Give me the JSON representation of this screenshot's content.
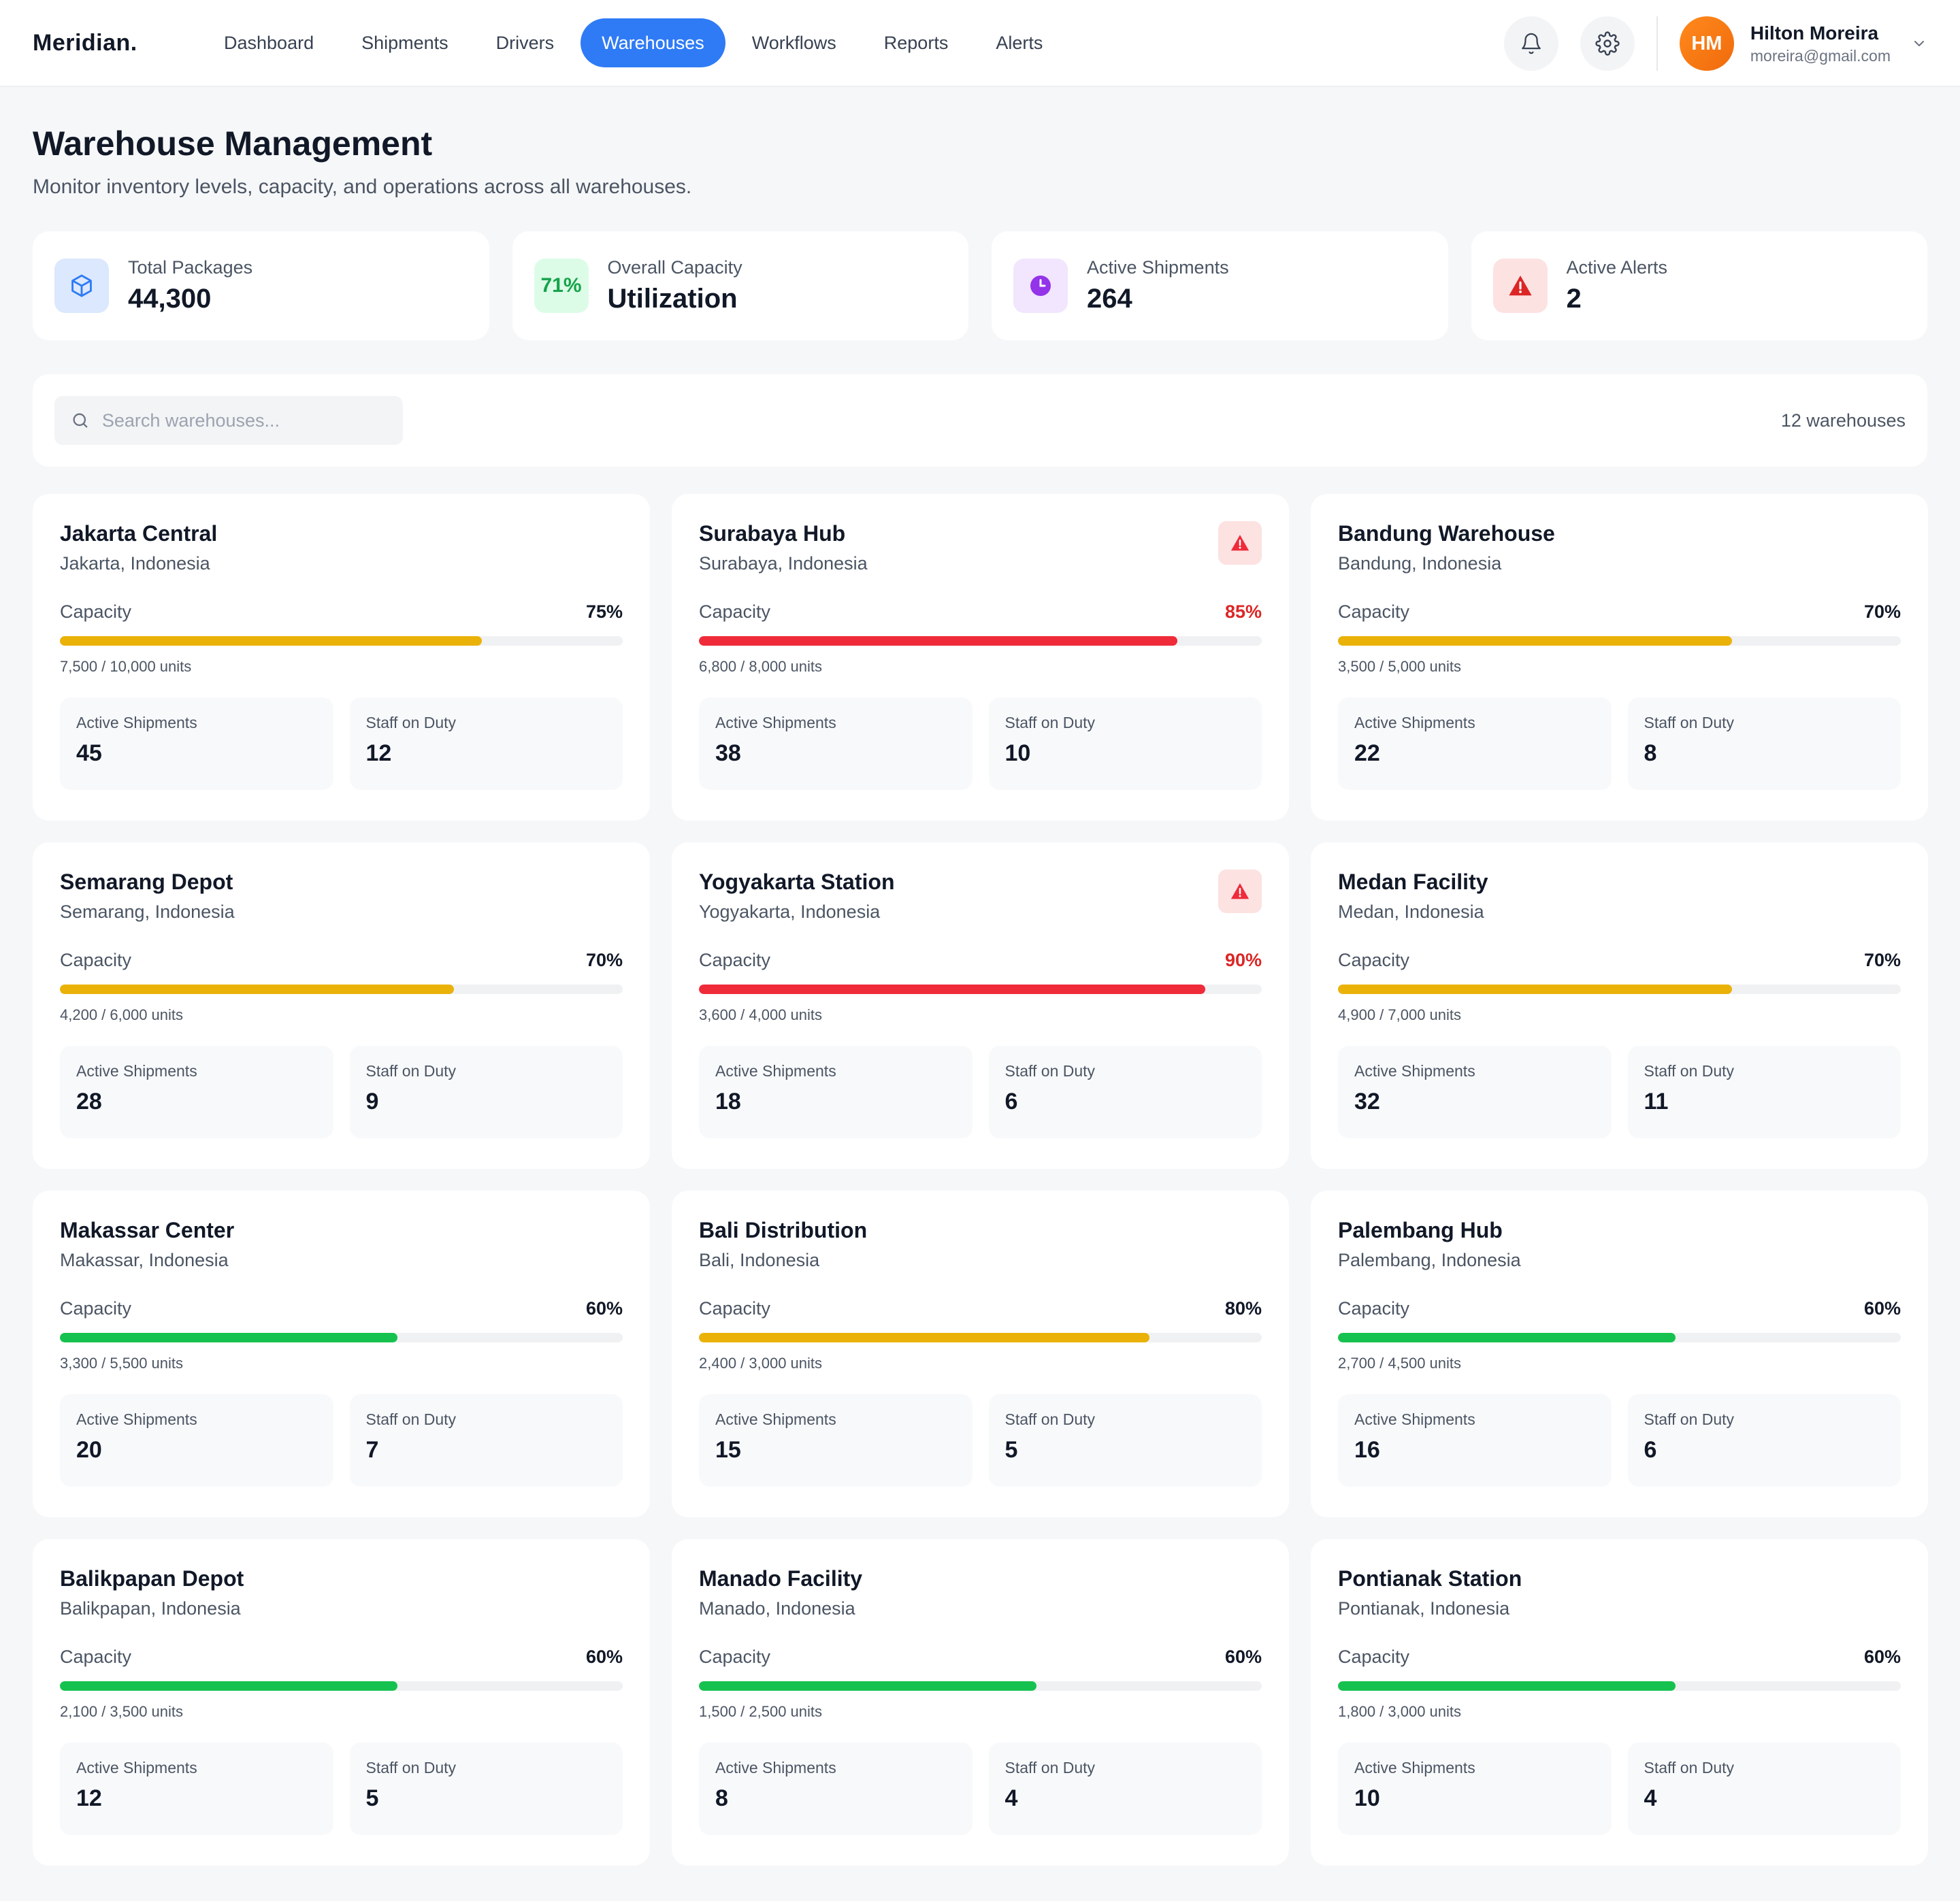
{
  "brand": "Meridian.",
  "nav": [
    {
      "label": "Dashboard",
      "active": false
    },
    {
      "label": "Shipments",
      "active": false
    },
    {
      "label": "Drivers",
      "active": false
    },
    {
      "label": "Warehouses",
      "active": true
    },
    {
      "label": "Workflows",
      "active": false
    },
    {
      "label": "Reports",
      "active": false
    },
    {
      "label": "Alerts",
      "active": false
    }
  ],
  "user": {
    "initials": "HM",
    "name": "Hilton Moreira",
    "email": "moreira@gmail.com"
  },
  "header": {
    "title": "Warehouse Management",
    "subtitle": "Monitor inventory levels, capacity, and operations across all warehouses."
  },
  "stats": {
    "total_packages": {
      "label": "Total Packages",
      "value": "44,300",
      "icon": "cube-icon"
    },
    "overall_capacity": {
      "label": "Overall Capacity",
      "value": "Utilization",
      "badge": "71%"
    },
    "active_shipments": {
      "label": "Active Shipments",
      "value": "264",
      "icon": "clock-icon"
    },
    "active_alerts": {
      "label": "Active Alerts",
      "value": "2",
      "icon": "warning-icon"
    }
  },
  "search": {
    "placeholder": "Search warehouses...",
    "value": ""
  },
  "warehouse_count": "12 warehouses",
  "labels": {
    "capacity": "Capacity",
    "active_shipments": "Active Shipments",
    "staff_on_duty": "Staff on Duty"
  },
  "colors": {
    "accent": "#2f7bf5",
    "capacity_high": "#ef2b3a",
    "capacity_mid": "#eab208",
    "capacity_low": "#16c24f",
    "alert_text": "#dc2626"
  },
  "warehouses": [
    {
      "name": "Jakarta Central",
      "location": "Jakarta, Indonesia",
      "capacity_pct": "75%",
      "capacity_fraction": 0.75,
      "level": "mid",
      "units": "7,500 / 10,000 units",
      "active_shipments": "45",
      "staff": "12",
      "alert": false
    },
    {
      "name": "Surabaya Hub",
      "location": "Surabaya, Indonesia",
      "capacity_pct": "85%",
      "capacity_fraction": 0.85,
      "level": "high",
      "units": "6,800 / 8,000 units",
      "active_shipments": "38",
      "staff": "10",
      "alert": true
    },
    {
      "name": "Bandung Warehouse",
      "location": "Bandung, Indonesia",
      "capacity_pct": "70%",
      "capacity_fraction": 0.7,
      "level": "mid",
      "units": "3,500 / 5,000 units",
      "active_shipments": "22",
      "staff": "8",
      "alert": false
    },
    {
      "name": "Semarang Depot",
      "location": "Semarang, Indonesia",
      "capacity_pct": "70%",
      "capacity_fraction": 0.7,
      "level": "mid",
      "units": "4,200 / 6,000 units",
      "active_shipments": "28",
      "staff": "9",
      "alert": false
    },
    {
      "name": "Yogyakarta Station",
      "location": "Yogyakarta, Indonesia",
      "capacity_pct": "90%",
      "capacity_fraction": 0.9,
      "level": "high",
      "units": "3,600 / 4,000 units",
      "active_shipments": "18",
      "staff": "6",
      "alert": true
    },
    {
      "name": "Medan Facility",
      "location": "Medan, Indonesia",
      "capacity_pct": "70%",
      "capacity_fraction": 0.7,
      "level": "mid",
      "units": "4,900 / 7,000 units",
      "active_shipments": "32",
      "staff": "11",
      "alert": false
    },
    {
      "name": "Makassar Center",
      "location": "Makassar, Indonesia",
      "capacity_pct": "60%",
      "capacity_fraction": 0.6,
      "level": "low",
      "units": "3,300 / 5,500 units",
      "active_shipments": "20",
      "staff": "7",
      "alert": false
    },
    {
      "name": "Bali Distribution",
      "location": "Bali, Indonesia",
      "capacity_pct": "80%",
      "capacity_fraction": 0.8,
      "level": "mid",
      "units": "2,400 / 3,000 units",
      "active_shipments": "15",
      "staff": "5",
      "alert": false
    },
    {
      "name": "Palembang Hub",
      "location": "Palembang, Indonesia",
      "capacity_pct": "60%",
      "capacity_fraction": 0.6,
      "level": "low",
      "units": "2,700 / 4,500 units",
      "active_shipments": "16",
      "staff": "6",
      "alert": false
    },
    {
      "name": "Balikpapan Depot",
      "location": "Balikpapan, Indonesia",
      "capacity_pct": "60%",
      "capacity_fraction": 0.6,
      "level": "low",
      "units": "2,100 / 3,500 units",
      "active_shipments": "12",
      "staff": "5",
      "alert": false
    },
    {
      "name": "Manado Facility",
      "location": "Manado, Indonesia",
      "capacity_pct": "60%",
      "capacity_fraction": 0.6,
      "level": "low",
      "units": "1,500 / 2,500 units",
      "active_shipments": "8",
      "staff": "4",
      "alert": false
    },
    {
      "name": "Pontianak Station",
      "location": "Pontianak, Indonesia",
      "capacity_pct": "60%",
      "capacity_fraction": 0.6,
      "level": "low",
      "units": "1,800 / 3,000 units",
      "active_shipments": "10",
      "staff": "4",
      "alert": false
    }
  ]
}
